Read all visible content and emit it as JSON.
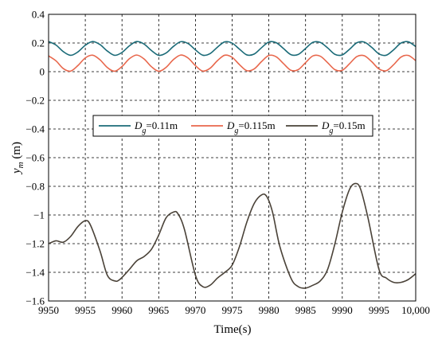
{
  "chart_data": {
    "type": "line",
    "xlabel": "Time(s)",
    "ylabel": {
      "main": "y",
      "sub": "m",
      "unit": " (m)"
    },
    "xlim": [
      9950,
      10000
    ],
    "ylim": [
      -1.6,
      0.4
    ],
    "x_ticks": [
      "9950",
      "9955",
      "9960",
      "9965",
      "9970",
      "9975",
      "9980",
      "9985",
      "9990",
      "9995",
      "10,000"
    ],
    "y_ticks": [
      "0.4",
      "0.2",
      "0",
      "−0.2",
      "−0.4",
      "−0.6",
      "−0.8",
      "−1",
      "−1.2",
      "−1.4",
      "−1.6"
    ],
    "grid": true,
    "legend_position": "middle-left",
    "series": [
      {
        "name": "Dg=0.11m",
        "legend": {
          "pre": "D",
          "sub": "g",
          "post": "=0.11m"
        },
        "color": "#1b6b78",
        "x": [
          9950,
          9951,
          9952,
          9953,
          9954,
          9955,
          9956,
          9957,
          9958,
          9959,
          9960,
          9961,
          9962,
          9963,
          9964,
          9965,
          9966,
          9967,
          9968,
          9969,
          9970,
          9971,
          9972,
          9973,
          9974,
          9975,
          9976,
          9977,
          9978,
          9979,
          9980,
          9981,
          9982,
          9983,
          9984,
          9985,
          9986,
          9987,
          9988,
          9989,
          9990,
          9991,
          9992,
          9993,
          9994,
          9995,
          9996,
          9997,
          9998,
          9999,
          10000
        ],
        "y": [
          0.21,
          0.186,
          0.14,
          0.114,
          0.138,
          0.184,
          0.21,
          0.189,
          0.144,
          0.114,
          0.134,
          0.18,
          0.21,
          0.193,
          0.148,
          0.114,
          0.13,
          0.176,
          0.209,
          0.196,
          0.152,
          0.115,
          0.126,
          0.171,
          0.208,
          0.199,
          0.157,
          0.117,
          0.123,
          0.167,
          0.207,
          0.202,
          0.161,
          0.119,
          0.12,
          0.162,
          0.205,
          0.204,
          0.166,
          0.121,
          0.117,
          0.157,
          0.202,
          0.206,
          0.17,
          0.124,
          0.115,
          0.153,
          0.2,
          0.208,
          0.175
        ]
      },
      {
        "name": "Dg=0.115m",
        "legend": {
          "pre": "D",
          "sub": "g",
          "post": "=0.115m"
        },
        "color": "#e8674c",
        "x": [
          9950,
          9951,
          9952,
          9953,
          9954,
          9955,
          9956,
          9957,
          9958,
          9959,
          9960,
          9961,
          9962,
          9963,
          9964,
          9965,
          9966,
          9967,
          9968,
          9969,
          9970,
          9971,
          9972,
          9973,
          9974,
          9975,
          9976,
          9977,
          9978,
          9979,
          9980,
          9981,
          9982,
          9983,
          9984,
          9985,
          9986,
          9987,
          9988,
          9989,
          9990,
          9991,
          9992,
          9993,
          9994,
          9995,
          9996,
          9997,
          9998,
          9999,
          10000
        ],
        "y": [
          0.11,
          0.076,
          0.022,
          0.004,
          0.043,
          0.096,
          0.115,
          0.083,
          0.029,
          0.003,
          0.036,
          0.09,
          0.116,
          0.089,
          0.035,
          0.003,
          0.03,
          0.084,
          0.116,
          0.095,
          0.042,
          0.004,
          0.024,
          0.077,
          0.115,
          0.1,
          0.049,
          0.007,
          0.019,
          0.07,
          0.113,
          0.104,
          0.056,
          0.01,
          0.014,
          0.063,
          0.11,
          0.108,
          0.063,
          0.014,
          0.01,
          0.056,
          0.106,
          0.111,
          0.07,
          0.019,
          0.007,
          0.049,
          0.102,
          0.113,
          0.077
        ]
      },
      {
        "name": "Dg=0.15m",
        "legend": {
          "pre": "D",
          "sub": "g",
          "post": "=0.15m"
        },
        "color": "#4a4238",
        "x": [
          9950,
          9951,
          9952,
          9953,
          9954,
          9955,
          9955.7,
          9957,
          9958,
          9959,
          9959.7,
          9961,
          9962,
          9963,
          9964,
          9965,
          9966,
          9967,
          9967.6,
          9968.5,
          9970,
          9971,
          9972,
          9973,
          9974,
          9975,
          9976,
          9977,
          9978,
          9979,
          9979.7,
          9980.5,
          9981.5,
          9983,
          9984,
          9985,
          9986,
          9987,
          9988,
          9989,
          9990,
          9991,
          9991.8,
          9992.5,
          9993.5,
          9995,
          9996,
          9997,
          9998,
          9999,
          10000
        ],
        "y": [
          -1.2,
          -1.18,
          -1.19,
          -1.15,
          -1.08,
          -1.04,
          -1.07,
          -1.25,
          -1.42,
          -1.46,
          -1.45,
          -1.38,
          -1.32,
          -1.29,
          -1.24,
          -1.14,
          -1.02,
          -0.98,
          -0.99,
          -1.1,
          -1.42,
          -1.5,
          -1.49,
          -1.44,
          -1.4,
          -1.35,
          -1.22,
          -1.05,
          -0.92,
          -0.86,
          -0.87,
          -0.98,
          -1.22,
          -1.44,
          -1.5,
          -1.51,
          -1.49,
          -1.46,
          -1.38,
          -1.2,
          -0.98,
          -0.82,
          -0.78,
          -0.82,
          -1.02,
          -1.38,
          -1.44,
          -1.47,
          -1.47,
          -1.45,
          -1.41
        ]
      }
    ]
  }
}
